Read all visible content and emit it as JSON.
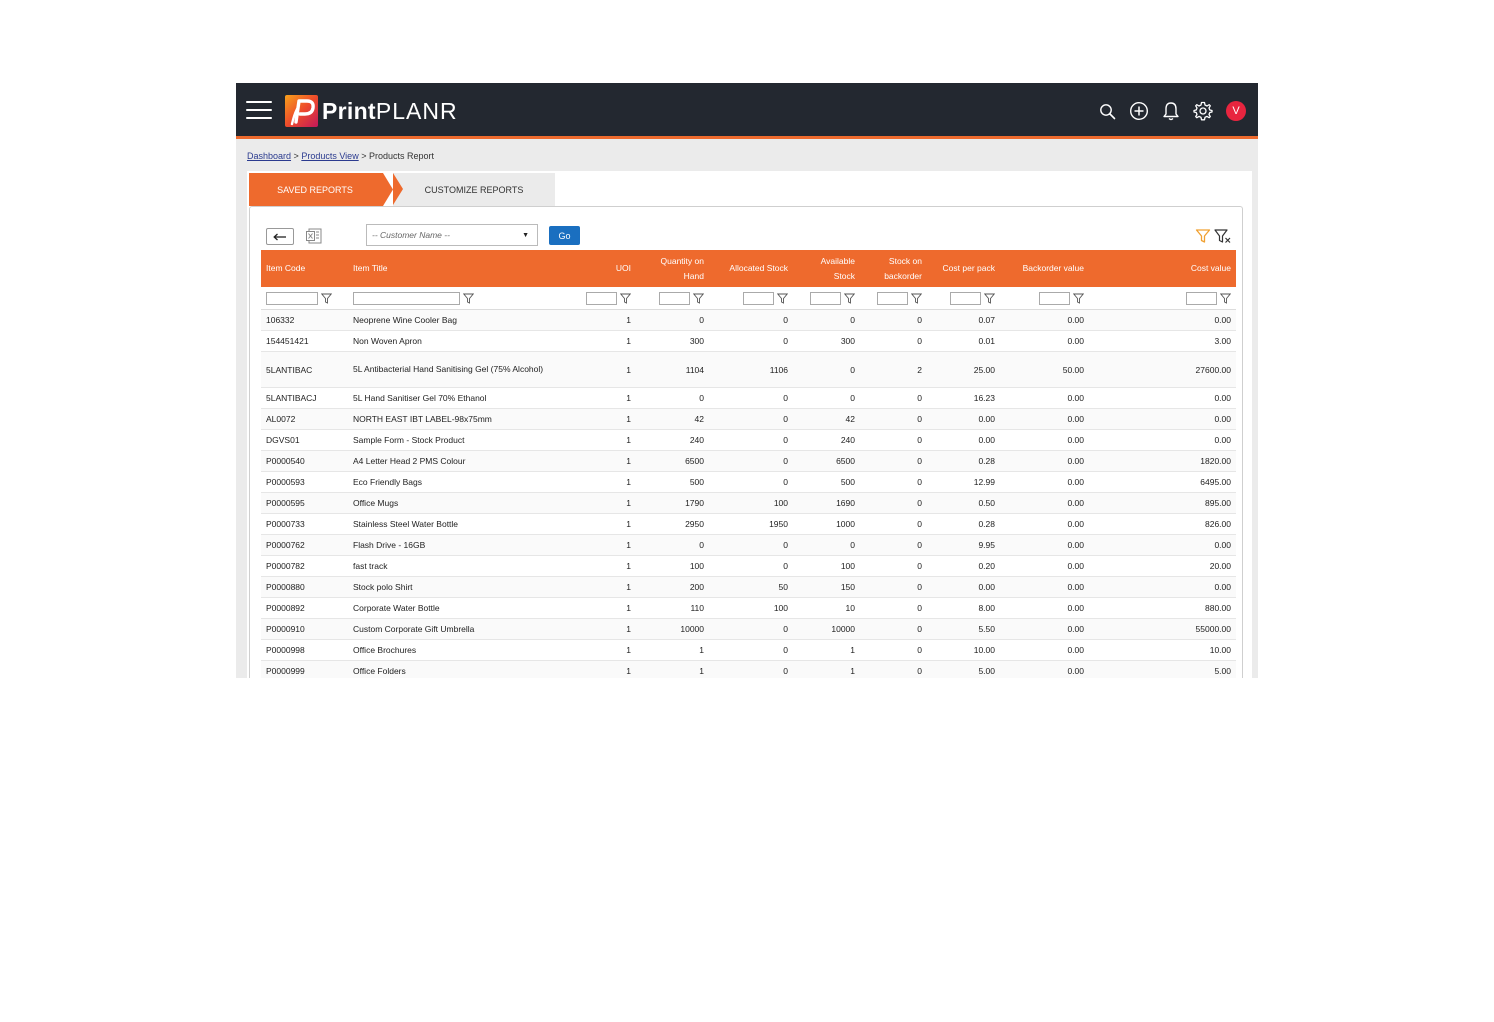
{
  "app": {
    "brand_bold": "Print",
    "brand_light": "PLANR",
    "avatar_initial": "V"
  },
  "icons": {
    "menu": "hamburger-icon",
    "search": "search-icon",
    "add": "plus-circle-icon",
    "notifications": "bell-icon",
    "settings": "gear-icon",
    "back": "arrow-left-icon",
    "export": "excel-icon",
    "filter": "filter-icon",
    "clear_filter": "filter-clear-icon"
  },
  "colors": {
    "accent": "#ee6a2d",
    "topbar": "#232830",
    "go_button": "#1a6fc0",
    "avatar": "#e8253f"
  },
  "breadcrumb": {
    "dashboard": "Dashboard",
    "products_view": "Products View",
    "sep": ">",
    "current": "Products Report"
  },
  "tabs": {
    "saved": "SAVED REPORTS",
    "customize": "CUSTOMIZE REPORTS"
  },
  "toolbar": {
    "customer_placeholder": "-- Customer Name --",
    "go_label": "Go"
  },
  "table": {
    "headers": {
      "item_code": "Item Code",
      "item_title": "Item Title",
      "uoi": "UOI",
      "qty_on_hand": "Quantity on Hand",
      "allocated": "Allocated Stock",
      "available": "Available Stock",
      "backorder": "Stock on backorder",
      "cost_per_pack": "Cost per pack",
      "backorder_value": "Backorder value",
      "cost_value": "Cost value"
    },
    "rows": [
      {
        "code": "106332",
        "title": "Neoprene Wine Cooler Bag",
        "uoi": "1",
        "qty": "0",
        "alloc": "0",
        "avail": "0",
        "back": "0",
        "cpp": "0.07",
        "bval": "0.00",
        "cval": "0.00"
      },
      {
        "code": "154451421",
        "title": "Non Woven Apron",
        "uoi": "1",
        "qty": "300",
        "alloc": "0",
        "avail": "300",
        "back": "0",
        "cpp": "0.01",
        "bval": "0.00",
        "cval": "3.00"
      },
      {
        "code": "5LANTIBAC",
        "title": "5L Antibacterial Hand Sanitising Gel (75% Alcohol)",
        "uoi": "1",
        "qty": "1104",
        "alloc": "1106",
        "avail": "0",
        "back": "2",
        "cpp": "25.00",
        "bval": "50.00",
        "cval": "27600.00"
      },
      {
        "code": "5LANTIBACJ",
        "title": "5L Hand Sanitiser Gel 70% Ethanol",
        "uoi": "1",
        "qty": "0",
        "alloc": "0",
        "avail": "0",
        "back": "0",
        "cpp": "16.23",
        "bval": "0.00",
        "cval": "0.00"
      },
      {
        "code": "AL0072",
        "title": "NORTH EAST IBT LABEL-98x75mm",
        "uoi": "1",
        "qty": "42",
        "alloc": "0",
        "avail": "42",
        "back": "0",
        "cpp": "0.00",
        "bval": "0.00",
        "cval": "0.00"
      },
      {
        "code": "DGVS01",
        "title": "Sample Form - Stock Product",
        "uoi": "1",
        "qty": "240",
        "alloc": "0",
        "avail": "240",
        "back": "0",
        "cpp": "0.00",
        "bval": "0.00",
        "cval": "0.00"
      },
      {
        "code": "P0000540",
        "title": "A4 Letter Head 2 PMS Colour",
        "uoi": "1",
        "qty": "6500",
        "alloc": "0",
        "avail": "6500",
        "back": "0",
        "cpp": "0.28",
        "bval": "0.00",
        "cval": "1820.00"
      },
      {
        "code": "P0000593",
        "title": "Eco Friendly Bags",
        "uoi": "1",
        "qty": "500",
        "alloc": "0",
        "avail": "500",
        "back": "0",
        "cpp": "12.99",
        "bval": "0.00",
        "cval": "6495.00"
      },
      {
        "code": "P0000595",
        "title": "Office Mugs",
        "uoi": "1",
        "qty": "1790",
        "alloc": "100",
        "avail": "1690",
        "back": "0",
        "cpp": "0.50",
        "bval": "0.00",
        "cval": "895.00"
      },
      {
        "code": "P0000733",
        "title": "Stainless Steel Water Bottle",
        "uoi": "1",
        "qty": "2950",
        "alloc": "1950",
        "avail": "1000",
        "back": "0",
        "cpp": "0.28",
        "bval": "0.00",
        "cval": "826.00"
      },
      {
        "code": "P0000762",
        "title": "Flash Drive - 16GB",
        "uoi": "1",
        "qty": "0",
        "alloc": "0",
        "avail": "0",
        "back": "0",
        "cpp": "9.95",
        "bval": "0.00",
        "cval": "0.00"
      },
      {
        "code": "P0000782",
        "title": "fast track",
        "uoi": "1",
        "qty": "100",
        "alloc": "0",
        "avail": "100",
        "back": "0",
        "cpp": "0.20",
        "bval": "0.00",
        "cval": "20.00"
      },
      {
        "code": "P0000880",
        "title": "Stock polo Shirt",
        "uoi": "1",
        "qty": "200",
        "alloc": "50",
        "avail": "150",
        "back": "0",
        "cpp": "0.00",
        "bval": "0.00",
        "cval": "0.00"
      },
      {
        "code": "P0000892",
        "title": "Corporate Water Bottle",
        "uoi": "1",
        "qty": "110",
        "alloc": "100",
        "avail": "10",
        "back": "0",
        "cpp": "8.00",
        "bval": "0.00",
        "cval": "880.00"
      },
      {
        "code": "P0000910",
        "title": "Custom Corporate Gift Umbrella",
        "uoi": "1",
        "qty": "10000",
        "alloc": "0",
        "avail": "10000",
        "back": "0",
        "cpp": "5.50",
        "bval": "0.00",
        "cval": "55000.00"
      },
      {
        "code": "P0000998",
        "title": "Office Brochures",
        "uoi": "1",
        "qty": "1",
        "alloc": "0",
        "avail": "1",
        "back": "0",
        "cpp": "10.00",
        "bval": "0.00",
        "cval": "10.00"
      },
      {
        "code": "P0000999",
        "title": "Office Folders",
        "uoi": "1",
        "qty": "1",
        "alloc": "0",
        "avail": "1",
        "back": "0",
        "cpp": "5.00",
        "bval": "0.00",
        "cval": "5.00"
      }
    ]
  }
}
